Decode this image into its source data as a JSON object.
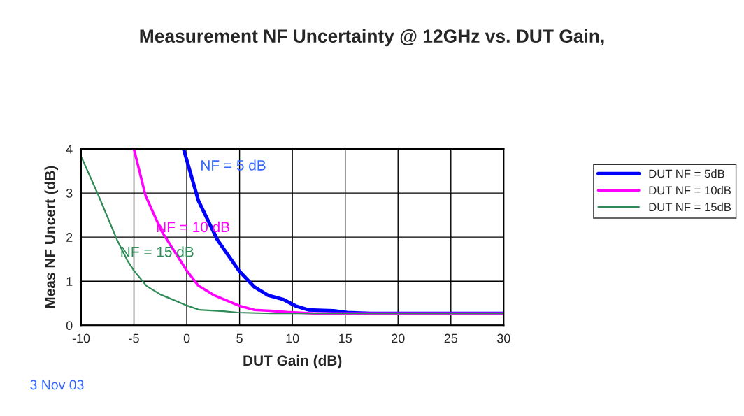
{
  "chart_data": {
    "type": "line",
    "title": "Measurement NF Uncertainty @ 12GHz vs. DUT Gain,",
    "xlabel": "DUT Gain (dB)",
    "ylabel": "Meas NF Uncert (dB)",
    "xlim": [
      -10,
      30
    ],
    "xticks": [
      -10,
      -5,
      0,
      5,
      10,
      15,
      20,
      25,
      30
    ],
    "ylim": [
      0,
      4
    ],
    "yticks": [
      0,
      1,
      2,
      3,
      4
    ],
    "grid": true,
    "legend": "right",
    "series": [
      {
        "name": "DUT NF = 5dB",
        "color": "#0000ff",
        "x": [
          -0.3,
          1.1,
          2.9,
          4.0,
          5.0,
          6.4,
          7.7,
          9.1,
          10.3,
          11.5,
          13.9,
          15.2,
          17.4,
          30
        ],
        "values": [
          4.0,
          2.83,
          1.94,
          1.56,
          1.22,
          0.87,
          0.68,
          0.59,
          0.44,
          0.35,
          0.33,
          0.29,
          0.27,
          0.27
        ]
      },
      {
        "name": "DUT NF = 10dB",
        "color": "#ff00ff",
        "x": [
          -5.0,
          -3.9,
          -2.4,
          0.0,
          1.1,
          2.6,
          5.0,
          6.4,
          7.9,
          9.5,
          12.0,
          30
        ],
        "values": [
          4.0,
          2.94,
          2.14,
          1.24,
          0.9,
          0.68,
          0.44,
          0.35,
          0.33,
          0.3,
          0.27,
          0.27
        ]
      },
      {
        "name": "DUT NF = 15dB",
        "color": "#2e8b57",
        "x": [
          -10,
          -8.4,
          -6.6,
          -5.6,
          -5.0,
          -3.8,
          -2.5,
          0.0,
          1.2,
          3.5,
          4.8,
          8.0,
          30
        ],
        "values": [
          3.83,
          2.97,
          1.94,
          1.46,
          1.24,
          0.89,
          0.7,
          0.45,
          0.35,
          0.32,
          0.29,
          0.27,
          0.27
        ]
      }
    ],
    "annotations": [
      "NF = 5 dB",
      "NF = 10 dB",
      "NF = 15 dB",
      "3 Nov 03"
    ]
  }
}
